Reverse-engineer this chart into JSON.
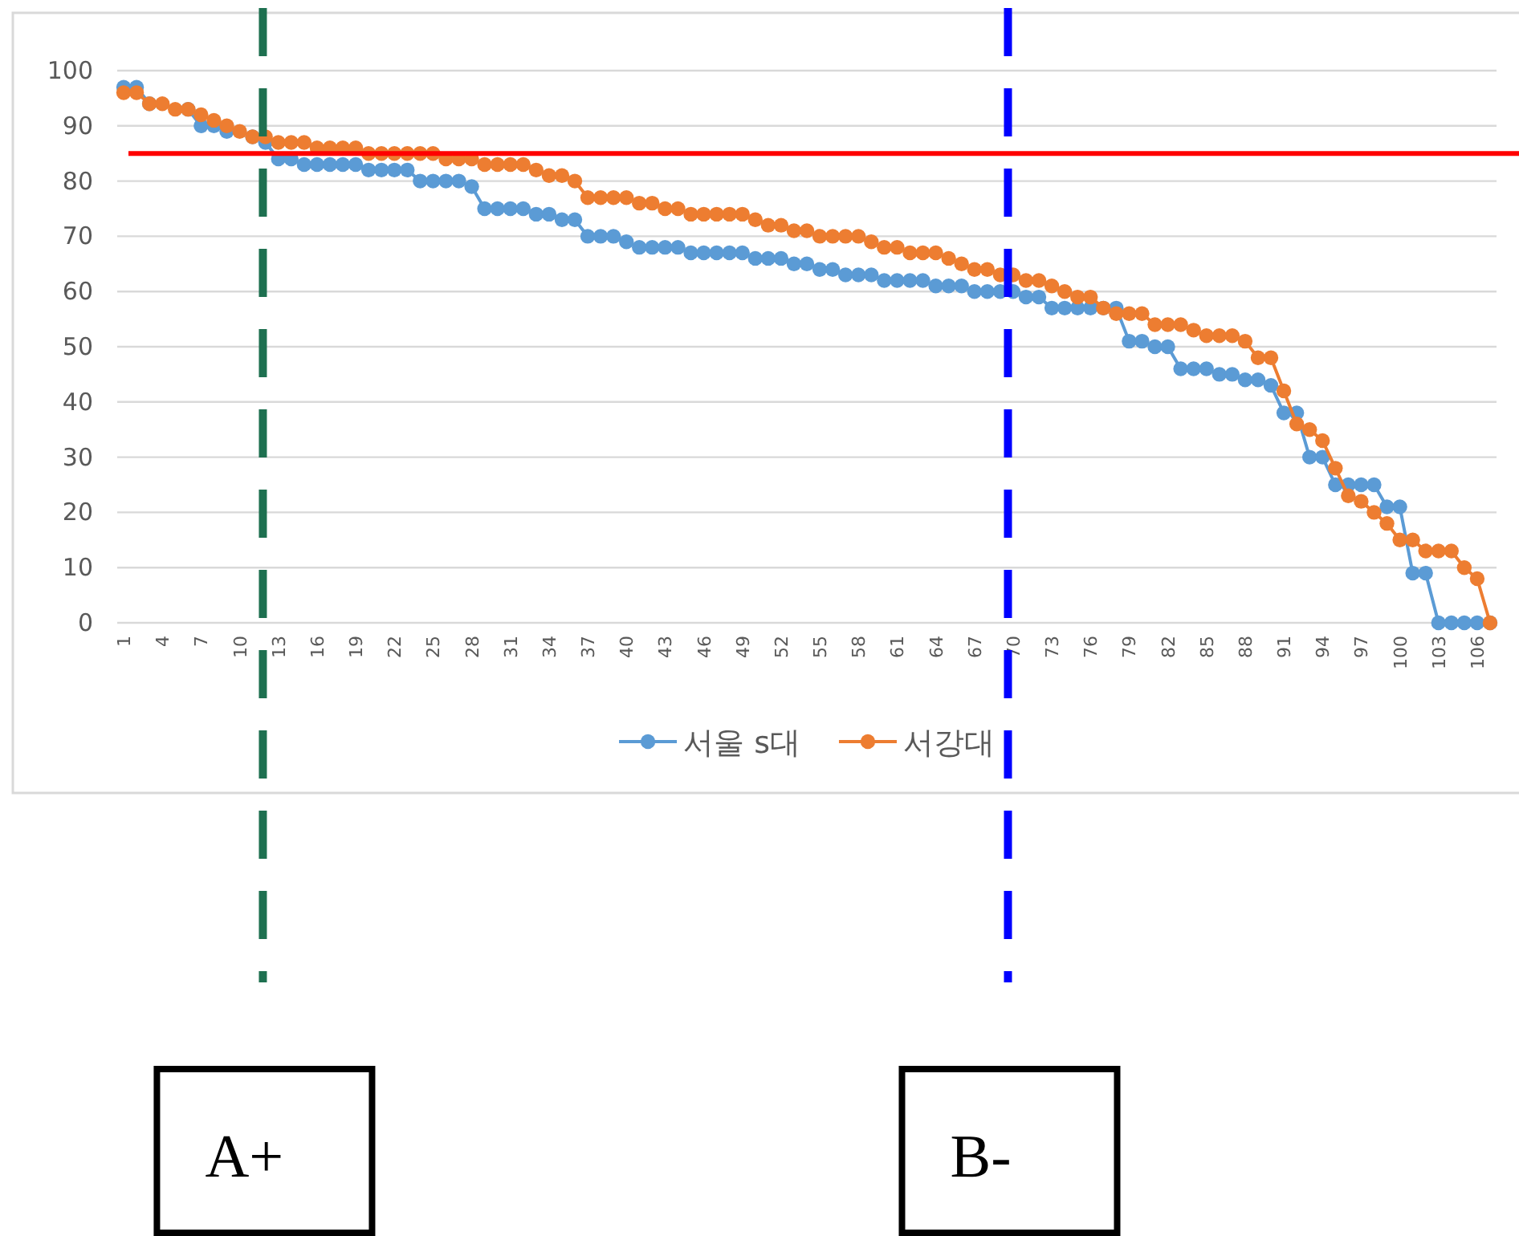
{
  "chart_data": {
    "type": "line",
    "x": [
      1,
      2,
      3,
      4,
      5,
      6,
      7,
      8,
      9,
      10,
      11,
      12,
      13,
      14,
      15,
      16,
      17,
      18,
      19,
      20,
      21,
      22,
      23,
      24,
      25,
      26,
      27,
      28,
      29,
      30,
      31,
      32,
      33,
      34,
      35,
      36,
      37,
      38,
      39,
      40,
      41,
      42,
      43,
      44,
      45,
      46,
      47,
      48,
      49,
      50,
      51,
      52,
      53,
      54,
      55,
      56,
      57,
      58,
      59,
      60,
      61,
      62,
      63,
      64,
      65,
      66,
      67,
      68,
      69,
      70,
      71,
      72,
      73,
      74,
      75,
      76,
      77,
      78,
      79,
      80,
      81,
      82,
      83,
      84,
      85,
      86,
      87,
      88,
      89,
      90,
      91,
      92,
      93,
      94,
      95,
      96,
      97,
      98,
      99,
      100,
      101,
      102,
      103,
      104,
      105,
      106,
      107
    ],
    "xlim": [
      0.5,
      107.5
    ],
    "xticks": [
      1,
      4,
      7,
      10,
      13,
      16,
      19,
      22,
      25,
      28,
      31,
      34,
      37,
      40,
      43,
      46,
      49,
      52,
      55,
      58,
      61,
      64,
      67,
      70,
      73,
      76,
      79,
      82,
      85,
      88,
      91,
      94,
      97,
      100,
      103,
      106
    ],
    "ylim": [
      0,
      100
    ],
    "yticks": [
      0,
      10,
      20,
      30,
      40,
      50,
      60,
      70,
      80,
      90,
      100
    ],
    "grid": "y",
    "legend": "bottom",
    "marker": "circle",
    "line_style": "solid",
    "series": [
      {
        "name": "서울 s대",
        "color": "#5b9bd5",
        "values": [
          97,
          97,
          94,
          null,
          null,
          93,
          90,
          90,
          89,
          null,
          88,
          87,
          84,
          84,
          83,
          83,
          83,
          83,
          83,
          82,
          82,
          82,
          82,
          80,
          80,
          80,
          80,
          79,
          75,
          75,
          75,
          75,
          74,
          74,
          73,
          73,
          70,
          70,
          70,
          69,
          68,
          68,
          68,
          68,
          67,
          67,
          67,
          67,
          67,
          66,
          66,
          66,
          65,
          65,
          64,
          64,
          63,
          63,
          63,
          62,
          62,
          62,
          62,
          61,
          61,
          61,
          60,
          60,
          60,
          60,
          59,
          59,
          57,
          57,
          57,
          57,
          57,
          57,
          51,
          51,
          50,
          50,
          46,
          46,
          46,
          45,
          45,
          44,
          44,
          43,
          38,
          38,
          30,
          30,
          25,
          25,
          25,
          25,
          21,
          21,
          9,
          9,
          0,
          0,
          0,
          0,
          0
        ]
      },
      {
        "name": "서강대",
        "color": "#ed7d31",
        "values": [
          96,
          96,
          94,
          94,
          93,
          93,
          92,
          91,
          90,
          89,
          88,
          88,
          87,
          87,
          87,
          86,
          86,
          86,
          86,
          85,
          85,
          85,
          85,
          85,
          85,
          84,
          84,
          84,
          83,
          83,
          83,
          83,
          82,
          81,
          81,
          80,
          77,
          77,
          77,
          77,
          76,
          76,
          75,
          75,
          74,
          74,
          74,
          74,
          74,
          73,
          72,
          72,
          71,
          71,
          70,
          70,
          70,
          70,
          69,
          68,
          68,
          67,
          67,
          67,
          66,
          65,
          64,
          64,
          63,
          63,
          62,
          62,
          61,
          60,
          59,
          59,
          57,
          56,
          56,
          56,
          54,
          54,
          54,
          53,
          52,
          52,
          52,
          51,
          48,
          48,
          42,
          36,
          35,
          33,
          28,
          23,
          22,
          20,
          18,
          15,
          15,
          13,
          13,
          13,
          10,
          8,
          0
        ]
      }
    ],
    "ref_lines": [
      {
        "axis": "y",
        "value": 85,
        "color": "#ff0000",
        "line_style": "solid"
      },
      {
        "axis": "x",
        "value": 11.8,
        "label": "A+",
        "color": "#1e7050",
        "line_style": "dashed"
      },
      {
        "axis": "x",
        "value": 69.6,
        "label": "B-",
        "color": "#0000ff",
        "line_style": "dashed"
      }
    ]
  }
}
